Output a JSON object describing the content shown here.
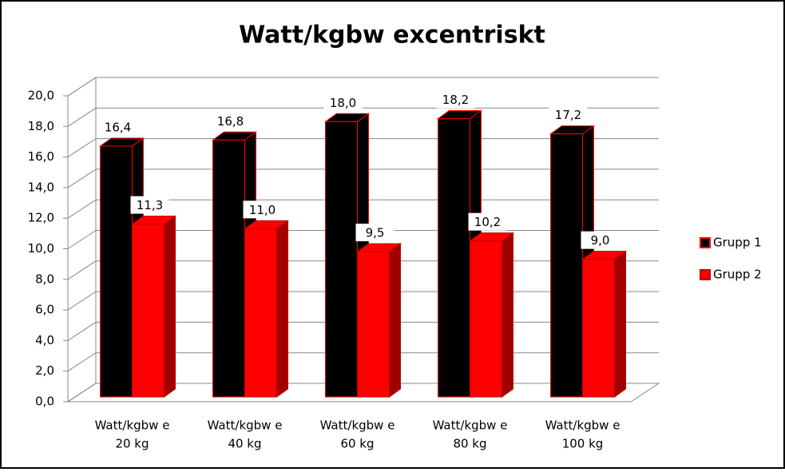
{
  "chart_data": {
    "type": "bar3d",
    "title": "Watt/kgbw excentriskt",
    "categories": [
      [
        "Watt/kgbw e",
        "20 kg"
      ],
      [
        "Watt/kgbw e",
        "40 kg"
      ],
      [
        "Watt/kgbw e",
        "60 kg"
      ],
      [
        "Watt/kgbw e",
        "80 kg"
      ],
      [
        "Watt/kgbw e",
        "100 kg"
      ]
    ],
    "series": [
      {
        "name": "Grupp 1",
        "color": "#000000",
        "edge": "#ff0000",
        "side": "#000000",
        "values": [
          16.4,
          16.8,
          18.0,
          18.2,
          17.2
        ],
        "value_labels": [
          "16,4",
          "16,8",
          "18,0",
          "18,2",
          "17,2"
        ]
      },
      {
        "name": "Grupp 2",
        "color": "#ff0000",
        "edge": "#c00000",
        "side": "#a00000",
        "values": [
          11.3,
          11.0,
          9.5,
          10.2,
          9.0
        ],
        "value_labels": [
          "11,3",
          "11,0",
          "9,5",
          "10,2",
          "9,0"
        ]
      }
    ],
    "ylim": [
      0,
      20
    ],
    "yticks": [
      {
        "value": 0,
        "label": "0,0"
      },
      {
        "value": 2,
        "label": "2,0"
      },
      {
        "value": 4,
        "label": "4,0"
      },
      {
        "value": 6,
        "label": "6,0"
      },
      {
        "value": 8,
        "label": "8,0"
      },
      {
        "value": 10,
        "label": "10,0"
      },
      {
        "value": 12,
        "label": "12,0"
      },
      {
        "value": 14,
        "label": "14,0"
      },
      {
        "value": 16,
        "label": "16,0"
      },
      {
        "value": 18,
        "label": "18,0"
      },
      {
        "value": 20,
        "label": "20,0"
      }
    ],
    "grid": true,
    "legend": "right"
  }
}
